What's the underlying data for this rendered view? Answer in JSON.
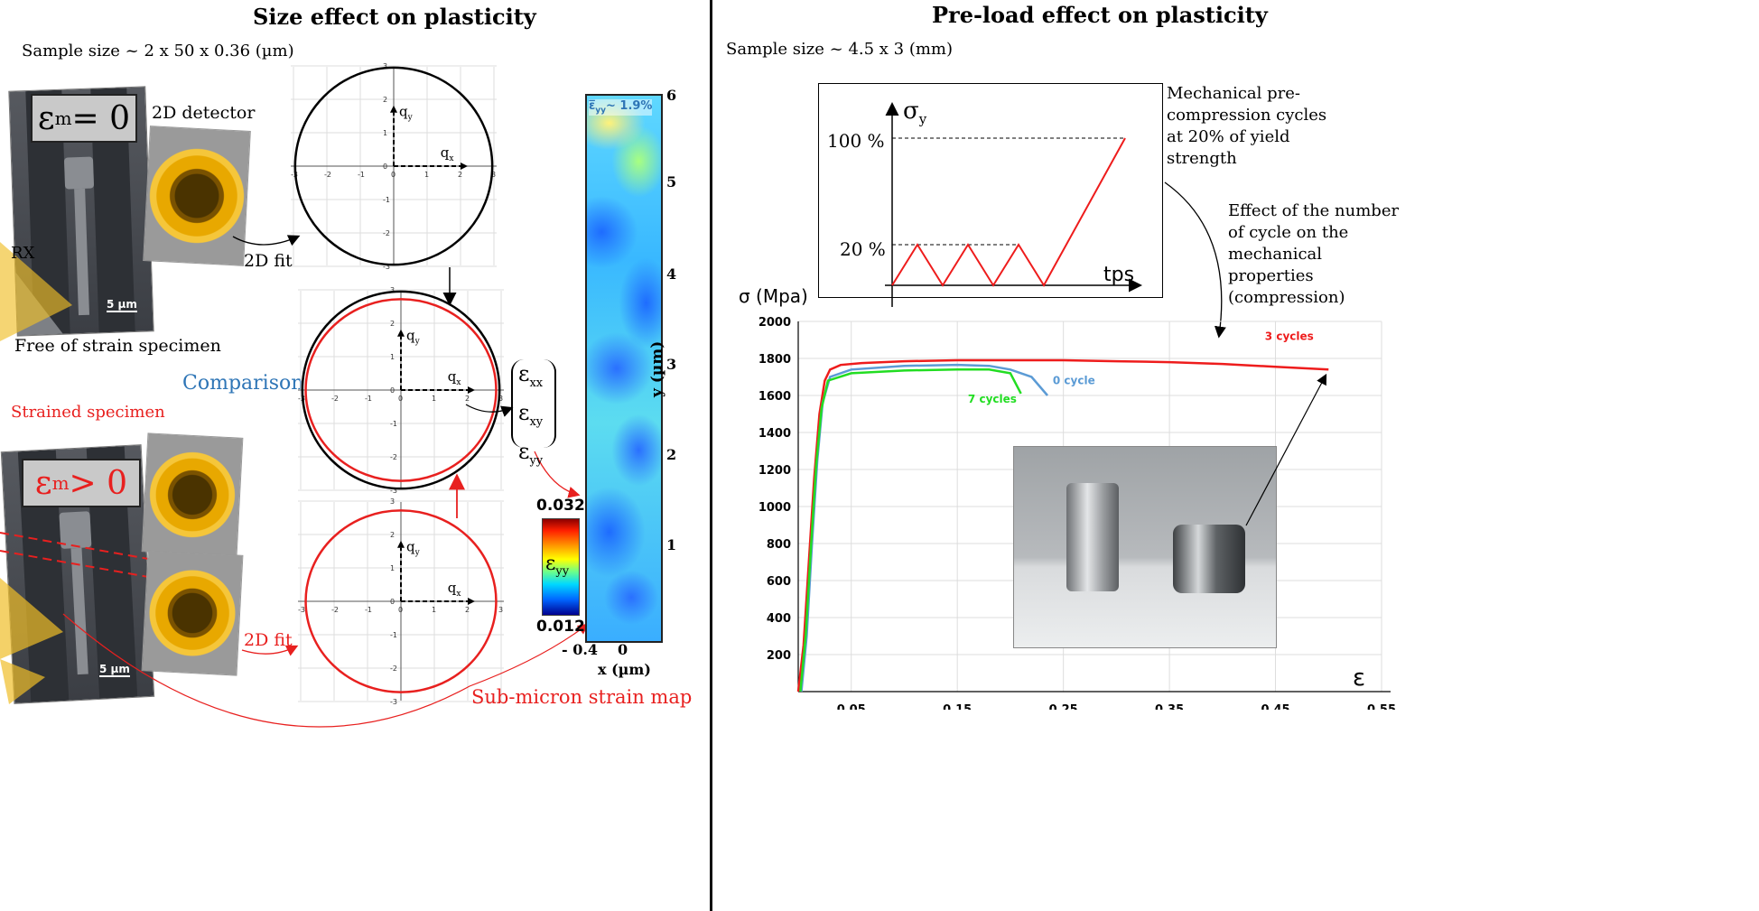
{
  "left": {
    "title": "Size effect on plasticity",
    "sample_size": "Sample size ~ 2 x 50 x 0.36 (µm)",
    "unstrained_label": "ε",
    "unstrained_sub": "m",
    "unstrained_eq": " = 0",
    "strained_sub": "m",
    "strained_eq": " > 0",
    "detector_label": "2D detector",
    "rx_label": "RX",
    "scale_bar": "5 µm",
    "free_label": "Free of strain specimen",
    "strained_label": "Strained specimen",
    "fit_label_top": "2D fit",
    "fit_label_bottom": "2D fit",
    "comparison_label": "Comparison",
    "strain_components": [
      "ε",
      "ε",
      "ε"
    ],
    "strain_subs": [
      "xx",
      "xy",
      "yy"
    ],
    "axis_qx": "q",
    "axis_qx_sub": "x",
    "axis_qy": "q",
    "axis_qy_sub": "y",
    "axis_ticks": [
      "-3",
      "-2",
      "-1",
      "0",
      "1",
      "2",
      "3"
    ],
    "colorbar_max": "0.032",
    "colorbar_min": "0.012",
    "colorbar_label": "ε",
    "colorbar_sub": "yy",
    "map_annotation": "~ 1.9%",
    "map_y_ticks": [
      "6",
      "5",
      "4",
      "3",
      "2",
      "1"
    ],
    "map_y_label": "y (µm)",
    "map_x_ticks": [
      "- 0.4",
      "0"
    ],
    "map_x_label": "x (µm)",
    "map_caption": "Sub-micron strain map"
  },
  "right": {
    "title": "Pre-load effect on plasticity",
    "sample_size": "Sample size ~ 4.5 x 3 (mm)",
    "inset": {
      "y_label": "σ",
      "y_sub": "y",
      "level_100": "100 %",
      "level_20": "20 %",
      "x_label": "tps"
    },
    "note_precompression": "Mechanical pre-compression cycles at 20% of yield strength",
    "note_effect": "Effect of the number of cycle on the mechanical properties (compression)",
    "photo_alt": "two cylindrical samples",
    "colors": {
      "red": "#ee1c1c",
      "blue": "#5b9bd5",
      "green": "#22dd22"
    }
  },
  "chart_data": {
    "type": "line",
    "title": "",
    "ylabel": "σ (Mpa)",
    "xlabel": "ε",
    "ylim": [
      0,
      2000
    ],
    "xlim": [
      0,
      0.55
    ],
    "x_ticks": [
      "0.05",
      "0.15",
      "0.25",
      "0.35",
      "0.45",
      "0.55"
    ],
    "y_ticks": [
      "200",
      "400",
      "600",
      "800",
      "1000",
      "1200",
      "1400",
      "1600",
      "1800",
      "2000"
    ],
    "grid": true,
    "series": [
      {
        "name": "3 cycles",
        "color": "#ee1c1c",
        "x": [
          0.0,
          0.005,
          0.01,
          0.015,
          0.02,
          0.025,
          0.03,
          0.04,
          0.06,
          0.1,
          0.15,
          0.2,
          0.25,
          0.3,
          0.35,
          0.4,
          0.45,
          0.5
        ],
        "y": [
          0,
          250,
          700,
          1150,
          1500,
          1680,
          1740,
          1765,
          1775,
          1785,
          1790,
          1790,
          1790,
          1785,
          1780,
          1770,
          1755,
          1740
        ]
      },
      {
        "name": "0 cycle",
        "color": "#5b9bd5",
        "x": [
          0.003,
          0.008,
          0.013,
          0.018,
          0.023,
          0.03,
          0.05,
          0.1,
          0.15,
          0.18,
          0.2,
          0.22,
          0.235
        ],
        "y": [
          0,
          300,
          800,
          1250,
          1560,
          1700,
          1740,
          1760,
          1765,
          1760,
          1740,
          1700,
          1600
        ]
      },
      {
        "name": "7 cycles",
        "color": "#22dd22",
        "x": [
          0.002,
          0.007,
          0.012,
          0.017,
          0.022,
          0.028,
          0.05,
          0.1,
          0.15,
          0.18,
          0.2,
          0.21
        ],
        "y": [
          0,
          300,
          780,
          1230,
          1530,
          1680,
          1720,
          1735,
          1740,
          1740,
          1720,
          1610
        ]
      }
    ]
  }
}
